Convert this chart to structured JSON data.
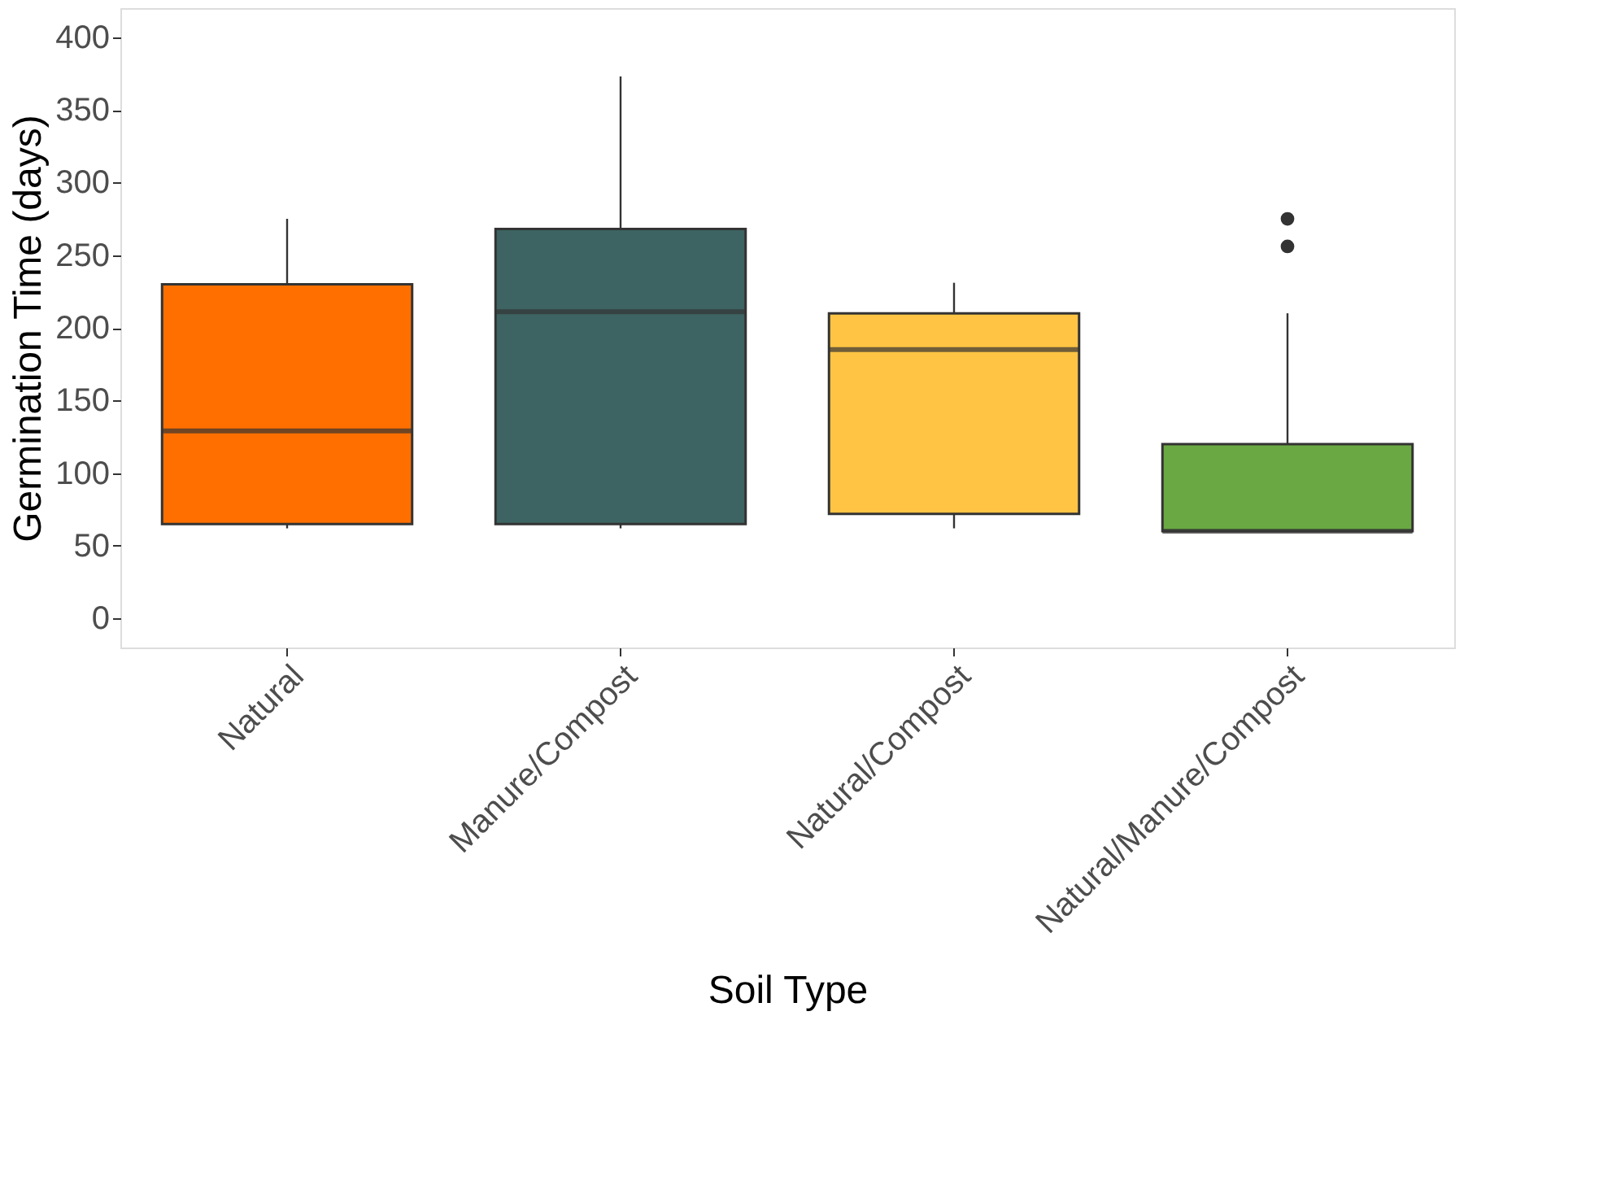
{
  "chart_data": {
    "type": "box",
    "xlabel": "Soil Type",
    "ylabel": "Germination Time (days)",
    "categories": [
      "Natural",
      "Manure/Compost",
      "Natural/Compost",
      "Natural/Manure/Compost"
    ],
    "colors": [
      "#ff6f00",
      "#3d6462",
      "#ffc444",
      "#6aa843"
    ],
    "boxes": [
      {
        "low": 62,
        "q1": 65,
        "median": 129,
        "q3": 230,
        "high": 275
      },
      {
        "low": 62,
        "q1": 65,
        "median": 211,
        "q3": 268,
        "high": 373
      },
      {
        "low": 62,
        "q1": 72,
        "median": 185,
        "q3": 210,
        "high": 231
      },
      {
        "low": 60,
        "q1": 60,
        "median": 60,
        "q3": 120,
        "high": 210,
        "outliers": [
          256,
          275
        ]
      }
    ],
    "ylim": [
      -20,
      420
    ],
    "yticks": [
      0,
      50,
      100,
      150,
      200,
      250,
      300,
      350,
      400
    ],
    "grid": false,
    "legend": false
  }
}
